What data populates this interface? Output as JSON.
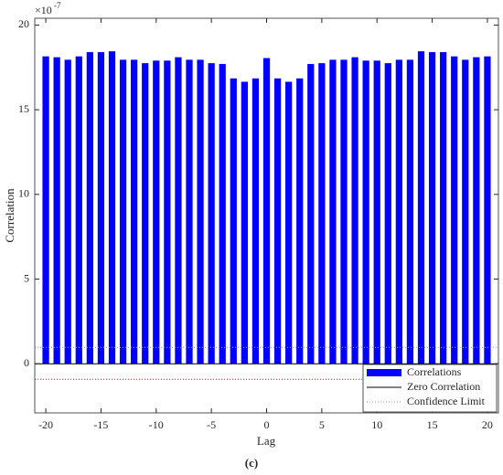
{
  "chart_data": {
    "type": "bar",
    "x": [
      -20,
      -19,
      -18,
      -17,
      -16,
      -15,
      -14,
      -13,
      -12,
      -11,
      -10,
      -9,
      -8,
      -7,
      -6,
      -5,
      -4,
      -3,
      -2,
      -1,
      0,
      1,
      2,
      3,
      4,
      5,
      6,
      7,
      8,
      9,
      10,
      11,
      12,
      13,
      14,
      15,
      16,
      17,
      18,
      19,
      20
    ],
    "series": [
      {
        "name": "Correlations",
        "color": "#0000ff",
        "values": [
          18.15,
          18.1,
          17.95,
          18.15,
          18.4,
          18.4,
          18.45,
          17.95,
          17.95,
          17.75,
          17.9,
          17.9,
          18.1,
          17.95,
          17.95,
          17.75,
          17.7,
          16.85,
          16.65,
          16.85,
          18.05,
          16.85,
          16.65,
          16.85,
          17.7,
          17.75,
          17.95,
          17.95,
          18.1,
          17.9,
          17.9,
          17.75,
          17.95,
          17.95,
          18.45,
          18.4,
          18.4,
          18.15,
          17.95,
          18.1,
          18.15
        ]
      }
    ],
    "zero_line": {
      "name": "Zero Correlation",
      "value": 0,
      "color": "#000000"
    },
    "confidence_limits": {
      "name": "Confidence Limit",
      "values": [
        0.97,
        -0.92
      ],
      "colors": [
        "#999999",
        "#ff0000"
      ]
    },
    "x_label": "Lag",
    "y_label": "Correlation",
    "y_multiplier": {
      "base": "×10",
      "exponent": -7
    },
    "xlim": [
      -21,
      21
    ],
    "ylim": [
      -2.9,
      20.4
    ],
    "xticks": [
      -20,
      -15,
      -10,
      -5,
      0,
      5,
      10,
      15,
      20
    ],
    "yticks": [
      0,
      5,
      10,
      15,
      20
    ],
    "legend": "lower right",
    "caption": "(c)"
  }
}
